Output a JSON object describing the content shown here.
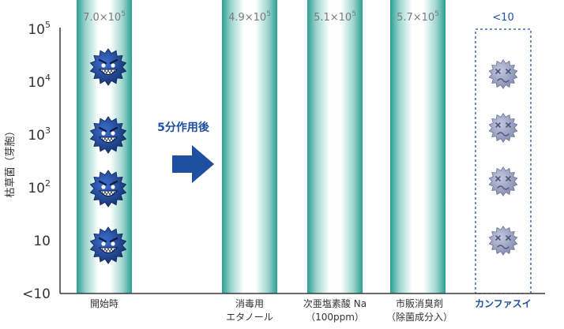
{
  "chart_data": {
    "type": "bar",
    "ylabel": "枯草菌（芽胞）",
    "y_scale": "log",
    "y_ticks": [
      {
        "base": "10",
        "exp": "5"
      },
      {
        "base": "10",
        "exp": "4"
      },
      {
        "base": "10",
        "exp": "3"
      },
      {
        "base": "10",
        "exp": "2"
      },
      {
        "base": "10",
        "exp": ""
      },
      {
        "base": "<10",
        "exp": ""
      }
    ],
    "categories": [
      {
        "line1": "開始時",
        "line2": ""
      },
      {
        "line1": "消毒用",
        "line2": "エタノール"
      },
      {
        "line1": "次亜塩素酸 Na",
        "line2": "（100ppm）"
      },
      {
        "line1": "市販消臭剤",
        "line2": "（除菌成分入）"
      },
      {
        "line1": "カンファスイ",
        "line2": ""
      }
    ],
    "values": [
      700000,
      490000,
      510000,
      570000,
      "<10"
    ],
    "value_labels": [
      {
        "mant": "7.0×10",
        "exp": "5"
      },
      {
        "mant": "4.9×10",
        "exp": "5"
      },
      {
        "mant": "5.1×10",
        "exp": "5"
      },
      {
        "mant": "5.7×10",
        "exp": "5"
      },
      {
        "mant": "<10",
        "exp": ""
      }
    ],
    "arrow_label": "5分作用後",
    "colors": {
      "bar_edge": "#2a9e93",
      "highlight": "#1f4fa0",
      "axis": "#3a3a3a",
      "germ_active": "#173f86",
      "germ_inactive": "#8d95b5"
    },
    "icons": {
      "active": "smiling-germ-icon",
      "inactive": "dizzy-germ-icon",
      "arrow": "right-arrow-icon"
    }
  }
}
